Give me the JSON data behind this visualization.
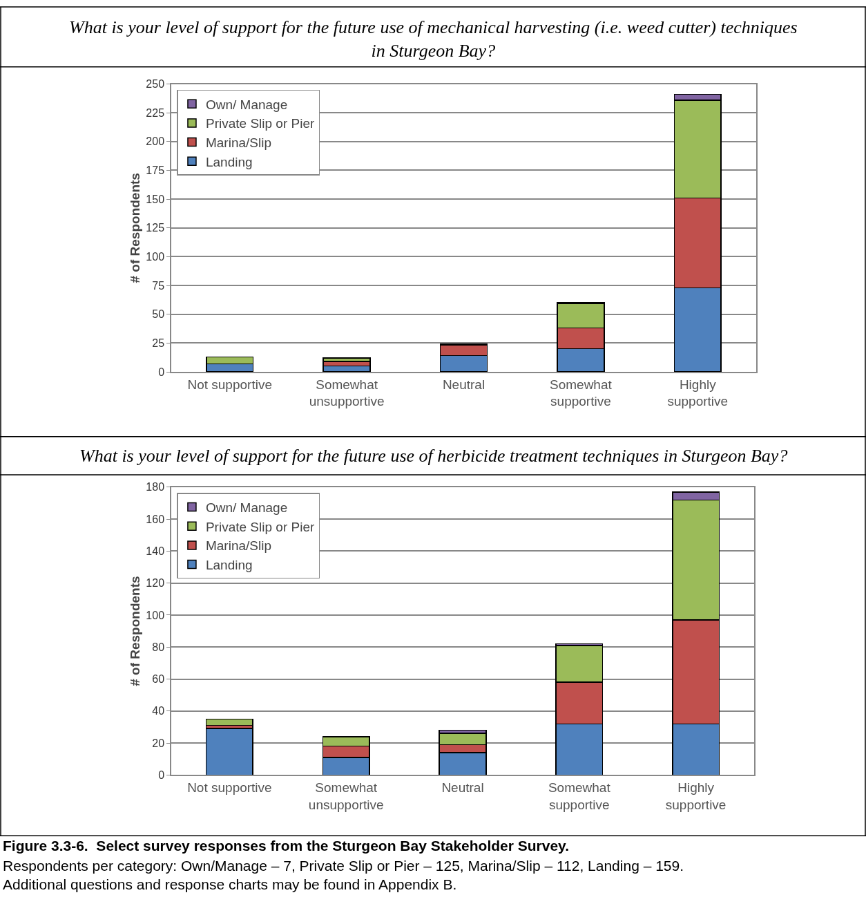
{
  "chart_data": [
    {
      "type": "bar",
      "stacked": true,
      "title": "What is your level of support for the future use of mechanical harvesting (i.e. weed cutter) techniques in Sturgeon Bay?",
      "ylabel": "# of Respondents",
      "categories": [
        "Not supportive",
        "Somewhat unsupportive",
        "Neutral",
        "Somewhat supportive",
        "Highly supportive"
      ],
      "series": [
        {
          "name": "Landing",
          "color": "#4f81bd",
          "values": [
            7,
            5,
            14,
            20,
            73
          ]
        },
        {
          "name": "Marina/Slip",
          "color": "#c0504d",
          "values": [
            null,
            4,
            9,
            18,
            78
          ]
        },
        {
          "name": "Private Slip or Pier",
          "color": "#9bbb59",
          "values": [
            6,
            3,
            1,
            21,
            85
          ]
        },
        {
          "name": "Own/ Manage",
          "color": "#8064a2",
          "values": [
            null,
            null,
            null,
            1,
            5
          ]
        }
      ],
      "ylim": [
        0,
        250
      ],
      "yticks": [
        0,
        25,
        50,
        75,
        100,
        125,
        150,
        175,
        200,
        225,
        250
      ],
      "grid": "y",
      "legend": "top left"
    },
    {
      "type": "bar",
      "stacked": true,
      "title": "What is your level of support for the future use of herbicide treatment techniques in Sturgeon Bay?",
      "ylabel": "# of Respondents",
      "categories": [
        "Not supportive",
        "Somewhat unsupportive",
        "Neutral",
        "Somewhat supportive",
        "Highly supportive"
      ],
      "series": [
        {
          "name": "Landing",
          "color": "#4f81bd",
          "values": [
            29,
            11,
            14,
            32,
            32
          ]
        },
        {
          "name": "Marina/Slip",
          "color": "#c0504d",
          "values": [
            2,
            7,
            5,
            26,
            65
          ]
        },
        {
          "name": "Private Slip or Pier",
          "color": "#9bbb59",
          "values": [
            4,
            6,
            7,
            23,
            75
          ]
        },
        {
          "name": "Own/ Manage",
          "color": "#8064a2",
          "values": [
            null,
            null,
            2,
            1,
            5
          ]
        }
      ],
      "ylim": [
        0,
        180
      ],
      "yticks": [
        0,
        20,
        40,
        60,
        80,
        100,
        120,
        140,
        160,
        180
      ],
      "grid": "y",
      "legend": "top left",
      "annotations": [
        "Figure 3.3-6.  Select survey responses from the Sturgeon Bay Stakeholder Survey.",
        "Respondents per category: Own/Manage – 7, Private Slip or Pier – 125, Marina/Slip – 112, Landing – 159.  Additional questions and response charts may be found in Appendix B."
      ]
    }
  ]
}
